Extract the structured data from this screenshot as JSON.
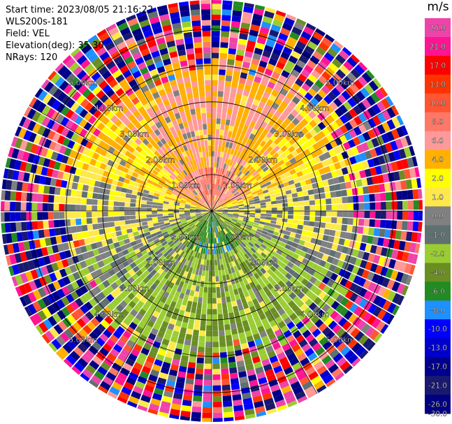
{
  "header": {
    "start_time": "Start time: 2023/08/05 21:16:22",
    "instrument": "WLS200s-181",
    "field": "Field: VEL",
    "elevation": "Elevation(deg): 35.30",
    "nrays": "NRays: 120"
  },
  "chart_data": {
    "type": "ppi",
    "field": "VEL",
    "units": "m/s",
    "nrays": 120,
    "rings_km": [
      1,
      2,
      3,
      4,
      5
    ],
    "ring_labels": [
      "1.00km",
      "2.00km",
      "3.00km",
      "4.00km",
      "5.00km"
    ],
    "max_range_km": 5.8,
    "spokes_deg": [
      0,
      30,
      60,
      90,
      120,
      150,
      180,
      210,
      240,
      270,
      300,
      330
    ],
    "colorbar": {
      "ticks": [
        "26.0",
        "21.0",
        "17.0",
        "13.0",
        "10.0",
        "8.0",
        "6.0",
        "4.0",
        "2.0",
        "1.0",
        "0.0",
        "-1.0",
        "-2.0",
        "-4.0",
        "-6.0",
        "-8.0",
        "-10.0",
        "-13.0",
        "-17.0",
        "-21.0",
        "-26.0",
        "-30.0"
      ],
      "colors": [
        "#ee44aa",
        "#ff1493",
        "#ff0000",
        "#ff3300",
        "#ff5533",
        "#ff7766",
        "#ff9999",
        "#ffb000",
        "#ffff00",
        "#ffe94a",
        "#808080",
        "#607070",
        "#9acd32",
        "#6b8e23",
        "#228b22",
        "#1e90ff",
        "#0000ff",
        "#0000cd",
        "#00008b",
        "#191970",
        "#000080"
      ]
    },
    "pattern": "Positive velocities (yellow/orange) in the northern half, negative velocities (green) in the southern half, noisy multicolour speckle beyond about 4.5 km range"
  }
}
